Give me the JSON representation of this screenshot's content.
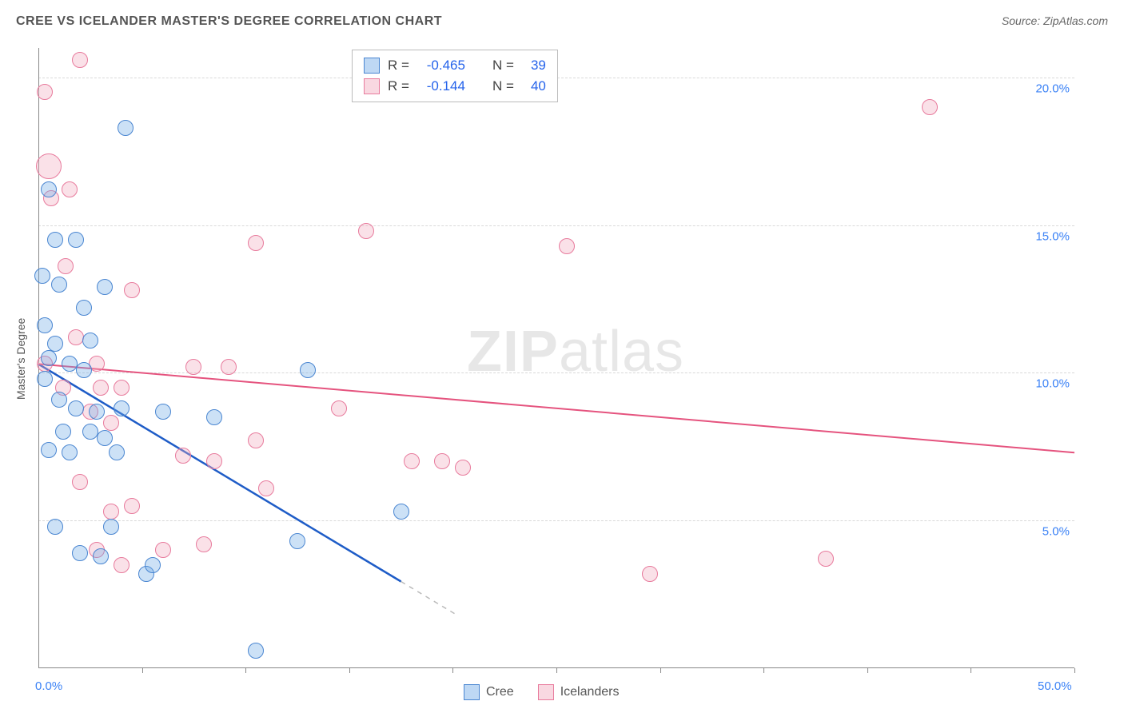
{
  "title": "CREE VS ICELANDER MASTER'S DEGREE CORRELATION CHART",
  "source_label": "Source: ZipAtlas.com",
  "watermark": {
    "bold": "ZIP",
    "light": "atlas"
  },
  "y_axis_label": "Master's Degree",
  "chart": {
    "type": "scatter",
    "background_color": "#ffffff",
    "grid_color": "#d9d9d9",
    "axis_color": "#888888",
    "tick_label_color": "#3b82f6",
    "tick_fontsize": 15,
    "xlim": [
      0,
      50
    ],
    "ylim": [
      0,
      21
    ],
    "x_tick_step": 5,
    "y_ticks": [
      5,
      10,
      15,
      20
    ],
    "y_tick_labels": [
      "5.0%",
      "10.0%",
      "15.0%",
      "20.0%"
    ],
    "x_origin_label": "0.0%",
    "x_end_label": "50.0%",
    "point_radius": 10,
    "point_border_width": 1.5,
    "point_fill_opacity": 0.35,
    "series": [
      {
        "name": "Cree",
        "color": "#6ea8e6",
        "border_color": "#4a86d1",
        "R": "-0.465",
        "N": "39",
        "trend": {
          "x1": 0,
          "y1": 10.3,
          "x2": 20.2,
          "y2": 1.8,
          "color": "#1e5cc7",
          "width": 2.5,
          "dash_from_x": 17.5
        },
        "points": [
          {
            "x": 0.5,
            "y": 16.2
          },
          {
            "x": 4.2,
            "y": 18.3
          },
          {
            "x": 0.8,
            "y": 14.5
          },
          {
            "x": 1.8,
            "y": 14.5
          },
          {
            "x": 0.2,
            "y": 13.3
          },
          {
            "x": 1.0,
            "y": 13.0
          },
          {
            "x": 3.2,
            "y": 12.9
          },
          {
            "x": 2.2,
            "y": 12.2
          },
          {
            "x": 0.3,
            "y": 11.6
          },
          {
            "x": 0.8,
            "y": 11.0
          },
          {
            "x": 2.5,
            "y": 11.1
          },
          {
            "x": 0.5,
            "y": 10.5
          },
          {
            "x": 1.5,
            "y": 10.3
          },
          {
            "x": 2.2,
            "y": 10.1
          },
          {
            "x": 13.0,
            "y": 10.1
          },
          {
            "x": 0.3,
            "y": 9.8
          },
          {
            "x": 1.0,
            "y": 9.1
          },
          {
            "x": 1.8,
            "y": 8.8
          },
          {
            "x": 2.8,
            "y": 8.7
          },
          {
            "x": 4.0,
            "y": 8.8
          },
          {
            "x": 6.0,
            "y": 8.7
          },
          {
            "x": 8.5,
            "y": 8.5
          },
          {
            "x": 1.2,
            "y": 8.0
          },
          {
            "x": 2.5,
            "y": 8.0
          },
          {
            "x": 3.2,
            "y": 7.8
          },
          {
            "x": 0.5,
            "y": 7.4
          },
          {
            "x": 1.5,
            "y": 7.3
          },
          {
            "x": 3.8,
            "y": 7.3
          },
          {
            "x": 0.8,
            "y": 4.8
          },
          {
            "x": 3.5,
            "y": 4.8
          },
          {
            "x": 17.5,
            "y": 5.3
          },
          {
            "x": 2.0,
            "y": 3.9
          },
          {
            "x": 3.0,
            "y": 3.8
          },
          {
            "x": 5.2,
            "y": 3.2
          },
          {
            "x": 5.5,
            "y": 3.5
          },
          {
            "x": 12.5,
            "y": 4.3
          },
          {
            "x": 10.5,
            "y": 0.6
          }
        ]
      },
      {
        "name": "Icelanders",
        "color": "#f2a8bd",
        "border_color": "#e87b9d",
        "R": "-0.144",
        "N": "40",
        "trend": {
          "x1": 0,
          "y1": 10.3,
          "x2": 50,
          "y2": 7.3,
          "color": "#e5537e",
          "width": 2
        },
        "points": [
          {
            "x": 2.0,
            "y": 20.6
          },
          {
            "x": 0.3,
            "y": 19.5
          },
          {
            "x": 43.0,
            "y": 19.0
          },
          {
            "x": 0.5,
            "y": 17.0,
            "r": 16
          },
          {
            "x": 1.5,
            "y": 16.2
          },
          {
            "x": 0.6,
            "y": 15.9
          },
          {
            "x": 15.8,
            "y": 14.8
          },
          {
            "x": 25.5,
            "y": 14.3
          },
          {
            "x": 1.3,
            "y": 13.6
          },
          {
            "x": 4.5,
            "y": 12.8
          },
          {
            "x": 10.5,
            "y": 14.4
          },
          {
            "x": 1.8,
            "y": 11.2
          },
          {
            "x": 0.3,
            "y": 10.3
          },
          {
            "x": 2.8,
            "y": 10.3
          },
          {
            "x": 7.5,
            "y": 10.2
          },
          {
            "x": 9.2,
            "y": 10.2
          },
          {
            "x": 1.2,
            "y": 9.5
          },
          {
            "x": 3.0,
            "y": 9.5
          },
          {
            "x": 4.0,
            "y": 9.5
          },
          {
            "x": 2.5,
            "y": 8.7
          },
          {
            "x": 3.5,
            "y": 8.3
          },
          {
            "x": 10.5,
            "y": 7.7
          },
          {
            "x": 14.5,
            "y": 8.8
          },
          {
            "x": 7.0,
            "y": 7.2
          },
          {
            "x": 8.5,
            "y": 7.0
          },
          {
            "x": 2.0,
            "y": 6.3
          },
          {
            "x": 11.0,
            "y": 6.1
          },
          {
            "x": 18.0,
            "y": 7.0
          },
          {
            "x": 19.5,
            "y": 7.0
          },
          {
            "x": 20.5,
            "y": 6.8
          },
          {
            "x": 3.5,
            "y": 5.3
          },
          {
            "x": 4.5,
            "y": 5.5
          },
          {
            "x": 29.5,
            "y": 3.2
          },
          {
            "x": 38.0,
            "y": 3.7
          },
          {
            "x": 8.0,
            "y": 4.2
          },
          {
            "x": 6.0,
            "y": 4.0
          },
          {
            "x": 2.8,
            "y": 4.0
          },
          {
            "x": 4.0,
            "y": 3.5
          }
        ]
      }
    ]
  },
  "stats_box": {
    "r_label": "R =",
    "n_label": "N ="
  },
  "legend": {
    "items": [
      "Cree",
      "Icelanders"
    ]
  }
}
